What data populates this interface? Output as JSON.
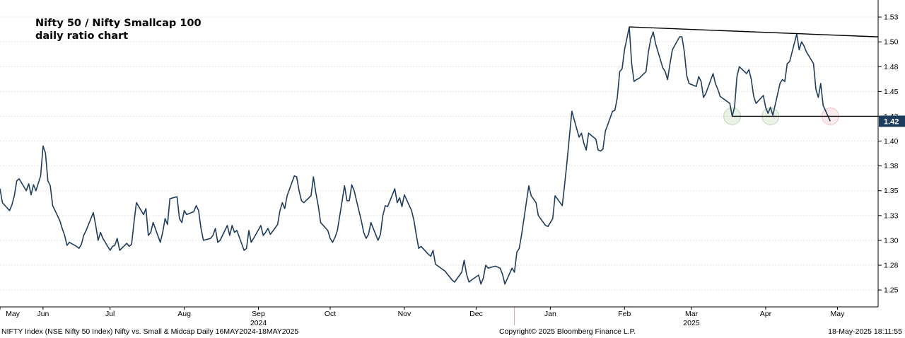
{
  "chart_data": {
    "type": "line",
    "title": "Nifty 50 / Nifty Smallcap 100",
    "subtitle": "daily ratio chart",
    "x_range": [
      "2024-05-16",
      "2025-05-18"
    ],
    "ylim": [
      1.233,
      1.54
    ],
    "y_ticks": [
      "1.53",
      "1.50",
      "1.48",
      "1.45",
      "1.43",
      "1.40",
      "1.38",
      "1.35",
      "1.33",
      "1.30",
      "1.28",
      "1.25"
    ],
    "y_tick_values": [
      1.525,
      1.5,
      1.475,
      1.45,
      1.425,
      1.4,
      1.375,
      1.35,
      1.325,
      1.3,
      1.275,
      1.25
    ],
    "last_value_label": "1.42",
    "last_value": 1.42,
    "x_ticks": [
      {
        "label": "May",
        "date": "2024-05-16"
      },
      {
        "label": "Jun",
        "date": "2024-06-03"
      },
      {
        "label": "Jul",
        "date": "2024-07-01"
      },
      {
        "label": "Aug",
        "date": "2024-08-01"
      },
      {
        "label": "Sep",
        "date": "2024-09-01"
      },
      {
        "label": "Oct",
        "date": "2024-10-01"
      },
      {
        "label": "Nov",
        "date": "2024-11-01"
      },
      {
        "label": "Dec",
        "date": "2024-12-01"
      },
      {
        "label": "Jan",
        "date": "2025-01-01"
      },
      {
        "label": "Feb",
        "date": "2025-02-01"
      },
      {
        "label": "Mar",
        "date": "2025-03-01"
      },
      {
        "label": "Apr",
        "date": "2025-04-01"
      },
      {
        "label": "May",
        "date": "2025-05-01"
      }
    ],
    "year_labels": [
      {
        "label": "2024",
        "date": "2024-09-01"
      },
      {
        "label": "2025",
        "date": "2025-03-01"
      }
    ],
    "year_divider_date": "2024-12-17",
    "series": [
      {
        "color": "#1e3d5c",
        "points": [
          [
            "2024-05-16",
            1.352
          ],
          [
            "2024-05-17",
            1.338
          ],
          [
            "2024-05-20",
            1.33
          ],
          [
            "2024-05-21",
            1.336
          ],
          [
            "2024-05-22",
            1.345
          ],
          [
            "2024-05-23",
            1.36
          ],
          [
            "2024-05-24",
            1.362
          ],
          [
            "2024-05-27",
            1.35
          ],
          [
            "2024-05-28",
            1.357
          ],
          [
            "2024-05-29",
            1.346
          ],
          [
            "2024-05-30",
            1.356
          ],
          [
            "2024-05-31",
            1.35
          ],
          [
            "2024-06-02",
            1.365
          ],
          [
            "2024-06-03",
            1.395
          ],
          [
            "2024-06-04",
            1.388
          ],
          [
            "2024-06-05",
            1.36
          ],
          [
            "2024-06-06",
            1.355
          ],
          [
            "2024-06-07",
            1.335
          ],
          [
            "2024-06-10",
            1.32
          ],
          [
            "2024-06-11",
            1.312
          ],
          [
            "2024-06-12",
            1.305
          ],
          [
            "2024-06-13",
            1.295
          ],
          [
            "2024-06-14",
            1.298
          ],
          [
            "2024-06-17",
            1.294
          ],
          [
            "2024-06-18",
            1.292
          ],
          [
            "2024-06-19",
            1.296
          ],
          [
            "2024-06-20",
            1.305
          ],
          [
            "2024-06-21",
            1.31
          ],
          [
            "2024-06-24",
            1.328
          ],
          [
            "2024-06-25",
            1.315
          ],
          [
            "2024-06-26",
            1.3
          ],
          [
            "2024-06-27",
            1.308
          ],
          [
            "2024-06-28",
            1.302
          ],
          [
            "2024-07-01",
            1.29
          ],
          [
            "2024-07-02",
            1.294
          ],
          [
            "2024-07-03",
            1.295
          ],
          [
            "2024-07-04",
            1.302
          ],
          [
            "2024-07-05",
            1.29
          ],
          [
            "2024-07-08",
            1.297
          ],
          [
            "2024-07-09",
            1.294
          ],
          [
            "2024-07-10",
            1.296
          ],
          [
            "2024-07-11",
            1.318
          ],
          [
            "2024-07-12",
            1.338
          ],
          [
            "2024-07-15",
            1.326
          ],
          [
            "2024-07-16",
            1.332
          ],
          [
            "2024-07-17",
            1.305
          ],
          [
            "2024-07-18",
            1.308
          ],
          [
            "2024-07-19",
            1.318
          ],
          [
            "2024-07-22",
            1.298
          ],
          [
            "2024-07-23",
            1.308
          ],
          [
            "2024-07-24",
            1.322
          ],
          [
            "2024-07-25",
            1.316
          ],
          [
            "2024-07-26",
            1.342
          ],
          [
            "2024-07-29",
            1.344
          ],
          [
            "2024-07-30",
            1.322
          ],
          [
            "2024-07-31",
            1.318
          ],
          [
            "2024-08-01",
            1.33
          ],
          [
            "2024-08-02",
            1.326
          ],
          [
            "2024-08-05",
            1.329
          ],
          [
            "2024-08-06",
            1.335
          ],
          [
            "2024-08-07",
            1.33
          ],
          [
            "2024-08-08",
            1.312
          ],
          [
            "2024-08-09",
            1.3
          ],
          [
            "2024-08-12",
            1.302
          ],
          [
            "2024-08-13",
            1.305
          ],
          [
            "2024-08-14",
            1.312
          ],
          [
            "2024-08-15",
            1.298
          ],
          [
            "2024-08-16",
            1.3
          ],
          [
            "2024-08-19",
            1.315
          ],
          [
            "2024-08-20",
            1.305
          ],
          [
            "2024-08-21",
            1.315
          ],
          [
            "2024-08-22",
            1.308
          ],
          [
            "2024-08-23",
            1.31
          ],
          [
            "2024-08-26",
            1.29
          ],
          [
            "2024-08-27",
            1.292
          ],
          [
            "2024-08-28",
            1.31
          ],
          [
            "2024-08-29",
            1.298
          ],
          [
            "2024-08-30",
            1.302
          ],
          [
            "2024-09-02",
            1.315
          ],
          [
            "2024-09-03",
            1.305
          ],
          [
            "2024-09-04",
            1.308
          ],
          [
            "2024-09-05",
            1.312
          ],
          [
            "2024-09-06",
            1.306
          ],
          [
            "2024-09-09",
            1.316
          ],
          [
            "2024-09-10",
            1.33
          ],
          [
            "2024-09-11",
            1.338
          ],
          [
            "2024-09-12",
            1.332
          ],
          [
            "2024-09-13",
            1.345
          ],
          [
            "2024-09-16",
            1.365
          ],
          [
            "2024-09-17",
            1.364
          ],
          [
            "2024-09-18",
            1.35
          ],
          [
            "2024-09-19",
            1.34
          ],
          [
            "2024-09-20",
            1.338
          ],
          [
            "2024-09-23",
            1.345
          ],
          [
            "2024-09-24",
            1.364
          ],
          [
            "2024-09-25",
            1.348
          ],
          [
            "2024-09-26",
            1.335
          ],
          [
            "2024-09-27",
            1.318
          ],
          [
            "2024-09-30",
            1.31
          ],
          [
            "2024-10-01",
            1.302
          ],
          [
            "2024-10-02",
            1.298
          ],
          [
            "2024-10-03",
            1.303
          ],
          [
            "2024-10-04",
            1.31
          ],
          [
            "2024-10-07",
            1.355
          ],
          [
            "2024-10-08",
            1.34
          ],
          [
            "2024-10-09",
            1.34
          ],
          [
            "2024-10-10",
            1.356
          ],
          [
            "2024-10-11",
            1.35
          ],
          [
            "2024-10-14",
            1.32
          ],
          [
            "2024-10-15",
            1.308
          ],
          [
            "2024-10-16",
            1.302
          ],
          [
            "2024-10-17",
            1.306
          ],
          [
            "2024-10-18",
            1.318
          ],
          [
            "2024-10-21",
            1.3
          ],
          [
            "2024-10-22",
            1.306
          ],
          [
            "2024-10-23",
            1.325
          ],
          [
            "2024-10-24",
            1.335
          ],
          [
            "2024-10-25",
            1.334
          ],
          [
            "2024-10-28",
            1.352
          ],
          [
            "2024-10-29",
            1.338
          ],
          [
            "2024-10-30",
            1.343
          ],
          [
            "2024-10-31",
            1.334
          ],
          [
            "2024-11-01",
            1.346
          ],
          [
            "2024-11-04",
            1.33
          ],
          [
            "2024-11-05",
            1.32
          ],
          [
            "2024-11-06",
            1.305
          ],
          [
            "2024-11-07",
            1.292
          ],
          [
            "2024-11-08",
            1.294
          ],
          [
            "2024-11-11",
            1.286
          ],
          [
            "2024-11-12",
            1.284
          ],
          [
            "2024-11-13",
            1.29
          ],
          [
            "2024-11-14",
            1.276
          ],
          [
            "2024-11-18",
            1.269
          ],
          [
            "2024-11-19",
            1.266
          ],
          [
            "2024-11-21",
            1.26
          ],
          [
            "2024-11-22",
            1.258
          ],
          [
            "2024-11-25",
            1.268
          ],
          [
            "2024-11-26",
            1.28
          ],
          [
            "2024-11-27",
            1.266
          ],
          [
            "2024-11-28",
            1.258
          ],
          [
            "2024-11-29",
            1.26
          ],
          [
            "2024-12-02",
            1.265
          ],
          [
            "2024-12-03",
            1.256
          ],
          [
            "2024-12-04",
            1.262
          ],
          [
            "2024-12-05",
            1.275
          ],
          [
            "2024-12-06",
            1.272
          ],
          [
            "2024-12-09",
            1.274
          ],
          [
            "2024-12-10",
            1.273
          ],
          [
            "2024-12-11",
            1.272
          ],
          [
            "2024-12-12",
            1.266
          ],
          [
            "2024-12-13",
            1.256
          ],
          [
            "2024-12-16",
            1.272
          ],
          [
            "2024-12-17",
            1.268
          ],
          [
            "2024-12-18",
            1.288
          ],
          [
            "2024-12-19",
            1.292
          ],
          [
            "2024-12-20",
            1.306
          ],
          [
            "2024-12-23",
            1.355
          ],
          [
            "2024-12-24",
            1.345
          ],
          [
            "2024-12-26",
            1.338
          ],
          [
            "2024-12-27",
            1.325
          ],
          [
            "2024-12-30",
            1.315
          ],
          [
            "2024-12-31",
            1.314
          ],
          [
            "2025-01-01",
            1.318
          ],
          [
            "2025-01-02",
            1.322
          ],
          [
            "2025-01-03",
            1.345
          ],
          [
            "2025-01-06",
            1.335
          ],
          [
            "2025-01-07",
            1.357
          ],
          [
            "2025-01-08",
            1.38
          ],
          [
            "2025-01-09",
            1.405
          ],
          [
            "2025-01-10",
            1.43
          ],
          [
            "2025-01-13",
            1.404
          ],
          [
            "2025-01-14",
            1.408
          ],
          [
            "2025-01-15",
            1.398
          ],
          [
            "2025-01-16",
            1.391
          ],
          [
            "2025-01-17",
            1.408
          ],
          [
            "2025-01-20",
            1.402
          ],
          [
            "2025-01-21",
            1.391
          ],
          [
            "2025-01-22",
            1.39
          ],
          [
            "2025-01-23",
            1.392
          ],
          [
            "2025-01-24",
            1.41
          ],
          [
            "2025-01-27",
            1.43
          ],
          [
            "2025-01-28",
            1.431
          ],
          [
            "2025-01-29",
            1.444
          ],
          [
            "2025-01-30",
            1.47
          ],
          [
            "2025-01-31",
            1.473
          ],
          [
            "2025-02-01",
            1.492
          ],
          [
            "2025-02-03",
            1.515
          ],
          [
            "2025-02-04",
            1.478
          ],
          [
            "2025-02-05",
            1.46
          ],
          [
            "2025-02-06",
            1.462
          ],
          [
            "2025-02-07",
            1.463
          ],
          [
            "2025-02-10",
            1.47
          ],
          [
            "2025-02-11",
            1.49
          ],
          [
            "2025-02-12",
            1.503
          ],
          [
            "2025-02-13",
            1.51
          ],
          [
            "2025-02-14",
            1.498
          ],
          [
            "2025-02-17",
            1.474
          ],
          [
            "2025-02-18",
            1.47
          ],
          [
            "2025-02-19",
            1.462
          ],
          [
            "2025-02-20",
            1.478
          ],
          [
            "2025-02-21",
            1.492
          ],
          [
            "2025-02-24",
            1.505
          ],
          [
            "2025-02-25",
            1.505
          ],
          [
            "2025-02-26",
            1.49
          ],
          [
            "2025-02-27",
            1.466
          ],
          [
            "2025-02-28",
            1.458
          ],
          [
            "2025-03-03",
            1.455
          ],
          [
            "2025-03-04",
            1.465
          ],
          [
            "2025-03-05",
            1.46
          ],
          [
            "2025-03-06",
            1.444
          ],
          [
            "2025-03-07",
            1.448
          ],
          [
            "2025-03-10",
            1.468
          ],
          [
            "2025-03-11",
            1.458
          ],
          [
            "2025-03-12",
            1.452
          ],
          [
            "2025-03-13",
            1.445
          ],
          [
            "2025-03-17",
            1.438
          ],
          [
            "2025-03-18",
            1.425
          ],
          [
            "2025-03-19",
            1.434
          ],
          [
            "2025-03-20",
            1.465
          ],
          [
            "2025-03-21",
            1.475
          ],
          [
            "2025-03-24",
            1.468
          ],
          [
            "2025-03-25",
            1.472
          ],
          [
            "2025-03-26",
            1.462
          ],
          [
            "2025-03-27",
            1.445
          ],
          [
            "2025-03-28",
            1.438
          ],
          [
            "2025-03-31",
            1.446
          ],
          [
            "2025-04-01",
            1.434
          ],
          [
            "2025-04-02",
            1.428
          ],
          [
            "2025-04-03",
            1.434
          ],
          [
            "2025-04-04",
            1.426
          ],
          [
            "2025-04-07",
            1.458
          ],
          [
            "2025-04-08",
            1.462
          ],
          [
            "2025-04-09",
            1.46
          ],
          [
            "2025-04-10",
            1.478
          ],
          [
            "2025-04-11",
            1.48
          ],
          [
            "2025-04-14",
            1.508
          ],
          [
            "2025-04-15",
            1.492
          ],
          [
            "2025-04-16",
            1.5
          ],
          [
            "2025-04-17",
            1.496
          ],
          [
            "2025-04-18",
            1.49
          ],
          [
            "2025-04-21",
            1.478
          ],
          [
            "2025-04-22",
            1.452
          ],
          [
            "2025-04-23",
            1.444
          ],
          [
            "2025-04-24",
            1.458
          ],
          [
            "2025-04-25",
            1.436
          ],
          [
            "2025-04-28",
            1.42
          ]
        ]
      }
    ],
    "annotations": {
      "resistance_line": [
        [
          "2025-02-03",
          1.515
        ],
        [
          "2025-05-18",
          1.505
        ]
      ],
      "support_line": [
        [
          "2025-03-18",
          1.425
        ],
        [
          "2025-05-18",
          1.425
        ]
      ],
      "circles": [
        {
          "date": "2025-03-18",
          "value": 1.425,
          "color": "#5a9a3c"
        },
        {
          "date": "2025-04-03",
          "value": 1.425,
          "color": "#5a9a3c"
        },
        {
          "date": "2025-04-28",
          "value": 1.425,
          "color": "#e05a6e"
        }
      ]
    }
  },
  "footer": {
    "left": "NIFTY Index (NSE Nifty 50 Index) Nifty vs. Small & Midcap  Daily 16MAY2024-18MAY2025",
    "center": "Copyright© 2025 Bloomberg Finance L.P.",
    "right": "18-May-2025 18:11:55"
  }
}
